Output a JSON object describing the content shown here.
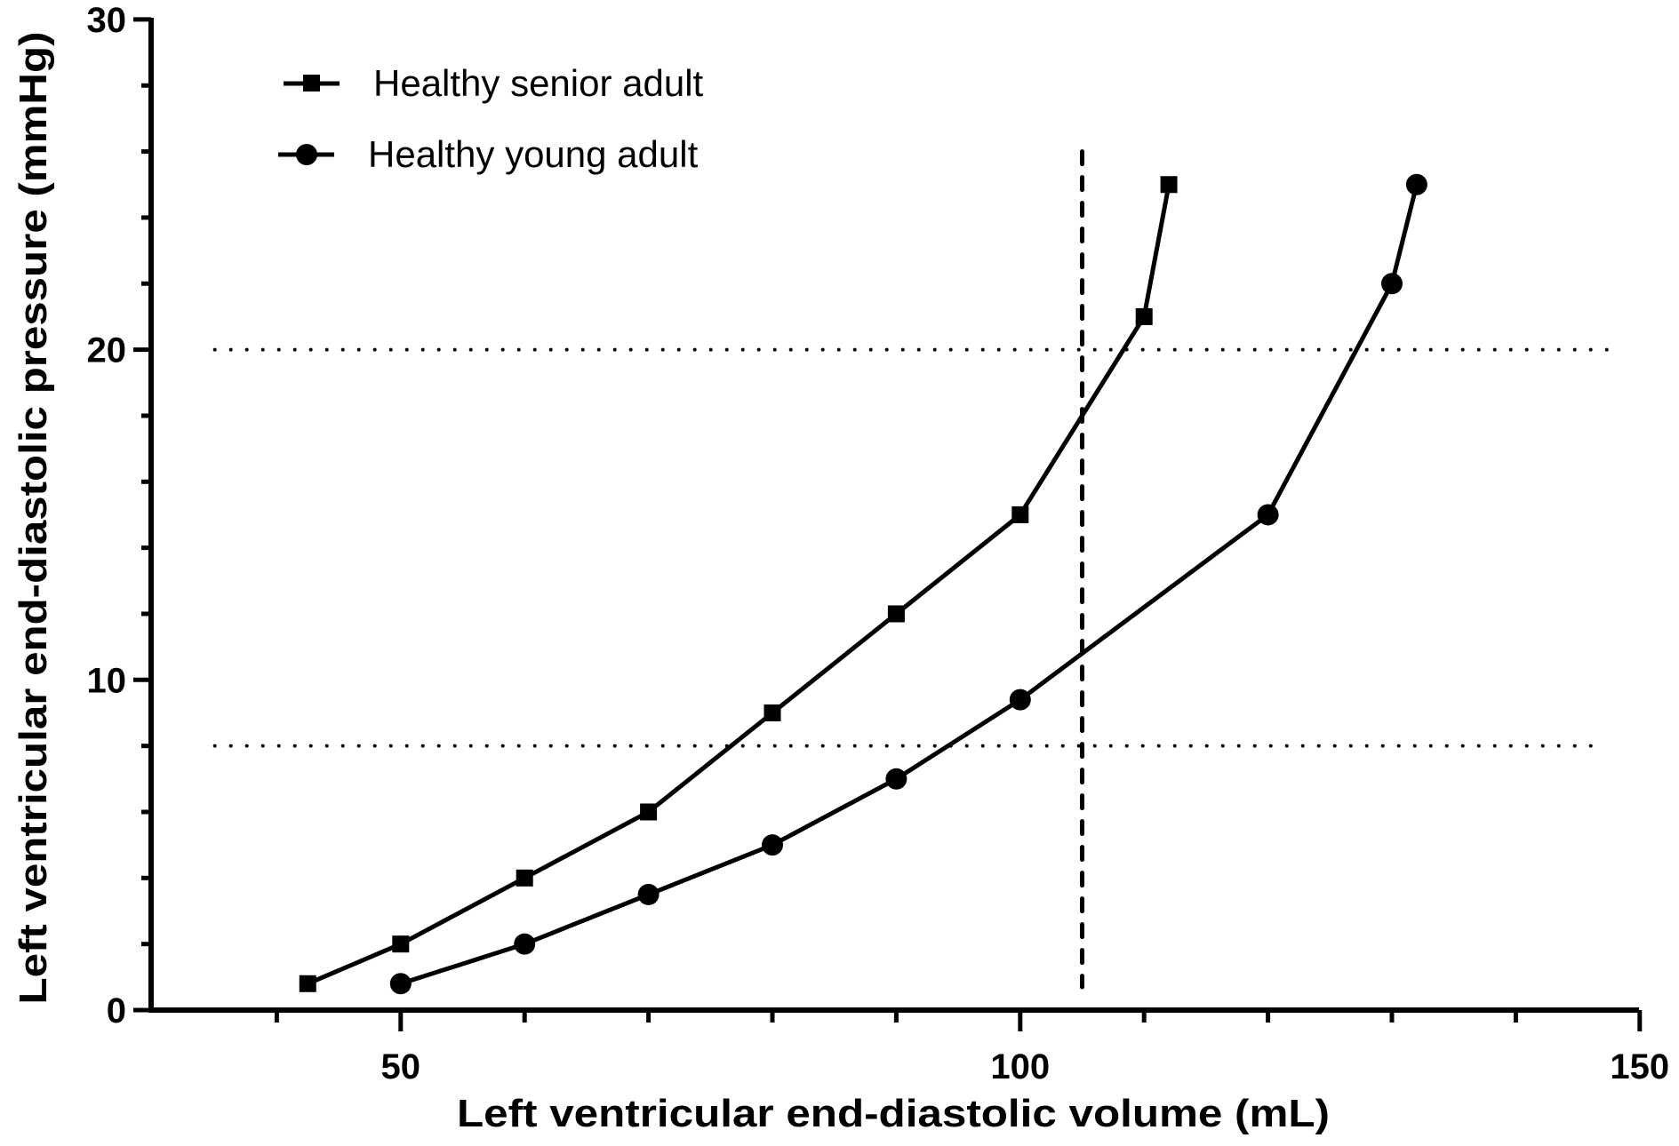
{
  "chart_data": {
    "type": "line",
    "title": "",
    "xlabel": "Left ventricular end-diastolic volume (mL)",
    "ylabel": "Left ventricular end-diastolic pressure (mmHg)",
    "xlim": [
      30,
      150
    ],
    "ylim": [
      0,
      30
    ],
    "x_major_ticks": [
      50,
      100,
      150
    ],
    "x_minor_ticks": [
      40,
      60,
      70,
      80,
      90,
      110,
      120,
      130,
      140
    ],
    "y_major_ticks": [
      0,
      10,
      20,
      30
    ],
    "y_minor_ticks": [
      2,
      4,
      6,
      8,
      12,
      14,
      16,
      18,
      22,
      24,
      26,
      28
    ],
    "x_tick_labels": [
      "50",
      "100",
      "150"
    ],
    "y_tick_labels": [
      "0",
      "10",
      "20",
      "30"
    ],
    "grid": false,
    "legend_position": "top-left",
    "series": [
      {
        "name": "Healthy senior adult",
        "marker": "square",
        "color": "#000000",
        "x": [
          42.5,
          50,
          60,
          70,
          80,
          90,
          100,
          110,
          112
        ],
        "y": [
          0.8,
          2,
          4,
          6,
          9,
          12,
          15,
          21,
          25
        ]
      },
      {
        "name": "Healthy young adult",
        "marker": "circle",
        "color": "#000000",
        "x": [
          50,
          60,
          70,
          80,
          90,
          100,
          120,
          130,
          132
        ],
        "y": [
          0.8,
          2,
          3.5,
          5,
          7,
          9.4,
          15,
          22,
          25
        ]
      }
    ],
    "reference_lines": [
      {
        "name": "upper-pressure-threshold",
        "orientation": "horizontal",
        "style": "dotted",
        "value": 20,
        "from": 35,
        "to": 147.5
      },
      {
        "name": "lower-pressure-threshold",
        "orientation": "horizontal",
        "style": "dotted",
        "value": 8,
        "from": 35,
        "to": 147
      },
      {
        "name": "volume-threshold",
        "orientation": "vertical",
        "style": "dashed",
        "value": 105,
        "from": 0.7,
        "to": 26
      }
    ]
  }
}
